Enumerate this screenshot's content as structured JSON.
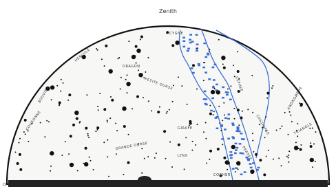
{
  "title": "Zenith",
  "horizon": {
    "left": "O"
  },
  "constellations": [
    "CYGNE",
    "DRAGON",
    "HERCULE",
    "PETITE OURSE",
    "GIRAFE",
    "LYNX",
    "GRANDE OURSE",
    "COCHER",
    "CEPHEE",
    "CASSIOPEE",
    "PERSEE",
    "ANDROMEDE",
    "TRIANGLE",
    "BOUVIER",
    "COURONNE"
  ]
}
